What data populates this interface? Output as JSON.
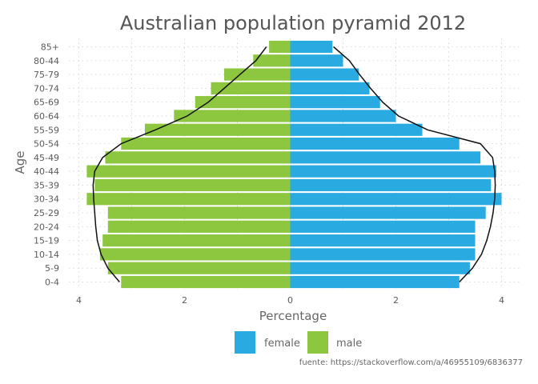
{
  "chart_data": {
    "type": "bar",
    "orientation": "horizontal",
    "layout": "population-pyramid",
    "title": "Australian population pyramid 2012",
    "xlabel": "Percentage",
    "ylabel": "Age",
    "categories": [
      "0-4",
      "5-9",
      "10-14",
      "15-19",
      "20-24",
      "25-29",
      "30-34",
      "35-39",
      "40-44",
      "45-49",
      "50-54",
      "55-59",
      "60-64",
      "65-69",
      "70-74",
      "75-79",
      "80-44",
      "85+"
    ],
    "series": [
      {
        "name": "female",
        "color": "#29abe2",
        "side": "right",
        "values": [
          3.2,
          3.4,
          3.5,
          3.5,
          3.5,
          3.7,
          4.0,
          3.8,
          3.9,
          3.6,
          3.2,
          2.5,
          2.0,
          1.7,
          1.5,
          1.3,
          1.0,
          0.8
        ]
      },
      {
        "name": "male",
        "color": "#8dc63f",
        "side": "left",
        "values": [
          3.2,
          3.45,
          3.6,
          3.55,
          3.45,
          3.45,
          3.85,
          3.7,
          3.85,
          3.5,
          3.2,
          2.75,
          2.2,
          1.8,
          1.5,
          1.25,
          0.7,
          0.4
        ]
      }
    ],
    "curve": {
      "color": "#111111",
      "left_values": [
        3.23,
        3.45,
        3.58,
        3.65,
        3.68,
        3.7,
        3.72,
        3.73,
        3.7,
        3.55,
        3.2,
        2.55,
        1.95,
        1.55,
        1.25,
        0.95,
        0.65,
        0.45
      ],
      "right_values": [
        3.2,
        3.45,
        3.62,
        3.72,
        3.79,
        3.84,
        3.87,
        3.88,
        3.87,
        3.83,
        3.6,
        2.6,
        2.05,
        1.75,
        1.52,
        1.31,
        1.12,
        0.82
      ]
    },
    "xticks": [
      -4,
      -2,
      0,
      2,
      4
    ],
    "xtick_labels": [
      "4",
      "2",
      "0",
      "2",
      "4"
    ],
    "xlim": [
      -4.3,
      4.3
    ],
    "grid": true,
    "legend": {
      "placement": "bottom",
      "items": [
        "female",
        "male"
      ]
    },
    "caption": "fuente: https://stackoverflow.com/a/46955109/6836377"
  }
}
